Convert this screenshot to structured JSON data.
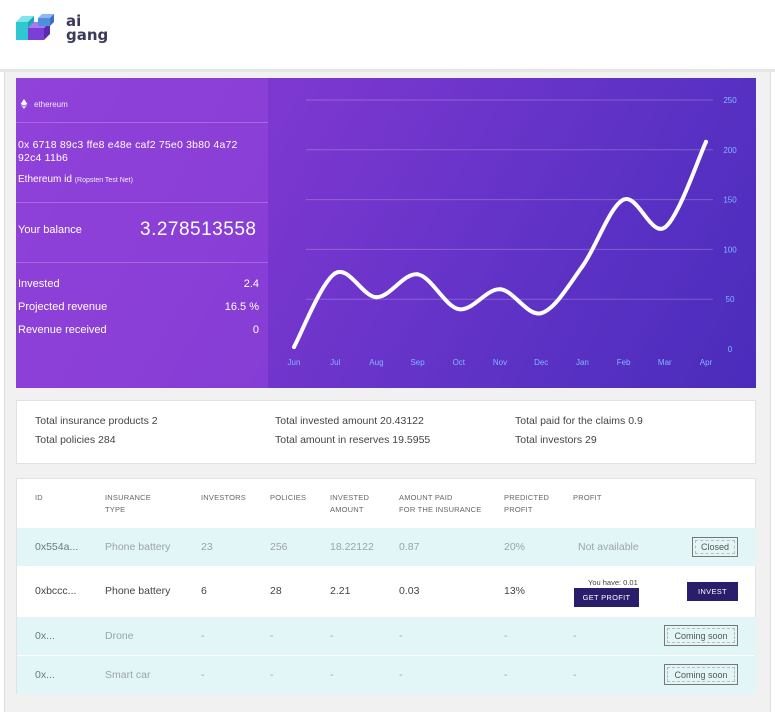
{
  "brand": {
    "logo_line1": "ai",
    "logo_line2": "gang",
    "colors": {
      "cube_teal": "#2ec7d2",
      "cube_purple": "#7b3fd8",
      "text": "#3c3a5a"
    }
  },
  "account": {
    "network": "ethereum",
    "address": "0x 6718 89c3 ffe8 e48e caf2 75e0 3b80 4a72 92c4 11b6",
    "id_label": "Ethereum id",
    "id_network": "(Ropsten Test Net)",
    "balance_label": "Your balance",
    "balance_value": "3.278513558",
    "stats": [
      {
        "label": "Invested",
        "value": "2.4"
      },
      {
        "label": "Projected revenue",
        "value": "16.5 %"
      },
      {
        "label": "Revenue received",
        "value": "0"
      }
    ]
  },
  "chart_data": {
    "type": "line",
    "title": "",
    "xlabel": "",
    "ylabel": "",
    "categories": [
      "Jun",
      "Jul",
      "Aug",
      "Sep",
      "Oct",
      "Nov",
      "Dec",
      "Jan",
      "Feb",
      "Mar",
      "Apr"
    ],
    "values": [
      2,
      76,
      52,
      75,
      40,
      60,
      36,
      83,
      150,
      122,
      208
    ],
    "ylim": [
      0,
      250
    ],
    "yticks": [
      "0",
      "50",
      "100",
      "150",
      "200",
      "250"
    ],
    "grid": true,
    "y_axis_side": "right",
    "colors": {
      "line": "#ffffff",
      "tick_labels": "#7fb8ff"
    }
  },
  "summary": {
    "items": [
      "Total insurance products 2",
      "Total policies 284",
      "Total invested amount 20.43122",
      "Total amount in reserves 19.5955",
      "Total paid for the claims 0.9",
      "Total investors 29"
    ]
  },
  "table": {
    "headers": {
      "id": "ID",
      "type_1": "INSURANCE",
      "type_2": "TYPE",
      "investors": "INVESTORS",
      "policies": "POLICIES",
      "invested_1": "INVESTED",
      "invested_2": "AMOUNT",
      "paid_1": "AMOUNT PAID",
      "paid_2": "FOR THE INSURANCE",
      "predicted_1": "PREDICTED",
      "predicted_2": "PROFIT",
      "profit": "PROFIT"
    },
    "rows": [
      {
        "id": "0x554a...",
        "type": "Phone battery",
        "investors": "23",
        "policies": "256",
        "invested": "18.22122",
        "paid": "0.87",
        "predicted": "20%",
        "profit": "Not available",
        "action": "Closed"
      },
      {
        "id": "0xbccc...",
        "type": "Phone battery",
        "investors": "6",
        "policies": "28",
        "invested": "2.21",
        "paid": "0.03",
        "predicted": "13%",
        "you_have": "You have: 0.01",
        "profit_button": "GET PROFIT",
        "action": "INVEST"
      },
      {
        "id": "0x...",
        "type": "Drone",
        "investors": "-",
        "policies": "-",
        "invested": "-",
        "paid": "-",
        "predicted": "-",
        "profit": "-",
        "action": "Coming soon"
      },
      {
        "id": "0x...",
        "type": "Smart car",
        "investors": "-",
        "policies": "-",
        "invested": "-",
        "paid": "-",
        "predicted": "-",
        "profit": "-",
        "action": "Coming soon"
      }
    ]
  }
}
